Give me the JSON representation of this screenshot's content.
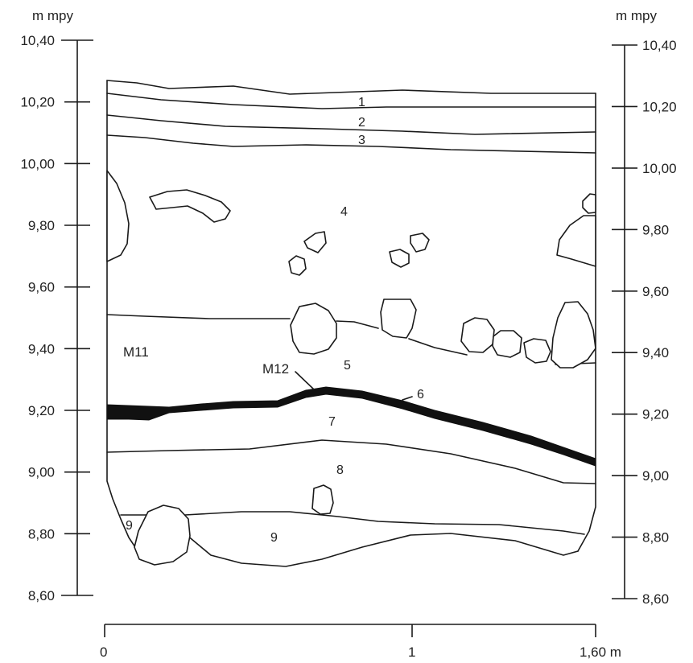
{
  "section": {
    "axis_unit": "m mpy",
    "y_ticks": [
      "10,40",
      "10,20",
      "10,00",
      "9,80",
      "9,60",
      "9,40",
      "9,20",
      "9,00",
      "8,80",
      "8,60"
    ],
    "scale_ticks": [
      "0",
      "1",
      "1,60 m"
    ],
    "layers": [
      "1",
      "2",
      "3",
      "4",
      "5",
      "6",
      "7",
      "8",
      "9",
      "9"
    ],
    "features": [
      "M11",
      "M12"
    ]
  }
}
